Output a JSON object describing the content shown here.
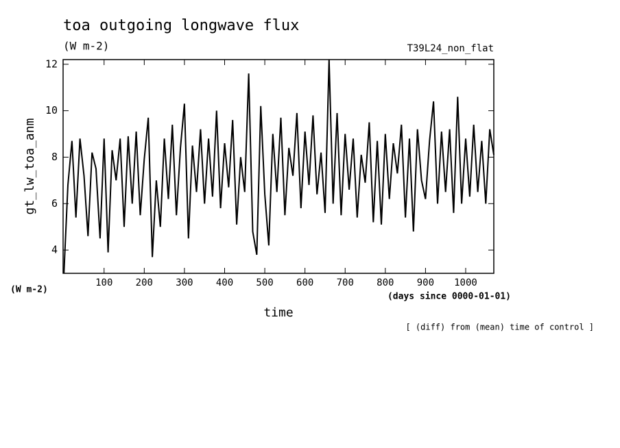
{
  "chart_data": {
    "type": "line",
    "title": "toa outgoing longwave flux",
    "subtitle": "(W m-2)",
    "tag": "T39L24_non_flat",
    "y_label": "gt_lw_toa_anm",
    "y_units": "(W m-2)",
    "x_label": "time",
    "x_units": "(days since 0000-01-01)",
    "note": "[ (diff) from (mean) time of control ]",
    "x": [
      0,
      10,
      20,
      30,
      40,
      50,
      60,
      70,
      80,
      90,
      100,
      110,
      120,
      130,
      140,
      150,
      160,
      170,
      180,
      190,
      200,
      210,
      220,
      230,
      240,
      250,
      260,
      270,
      280,
      290,
      300,
      310,
      320,
      330,
      340,
      350,
      360,
      370,
      380,
      390,
      400,
      410,
      420,
      430,
      440,
      450,
      460,
      470,
      480,
      490,
      500,
      510,
      520,
      530,
      540,
      550,
      560,
      570,
      580,
      590,
      600,
      610,
      620,
      630,
      640,
      650,
      660,
      670,
      680,
      690,
      700,
      710,
      720,
      730,
      740,
      750,
      760,
      770,
      780,
      790,
      800,
      810,
      820,
      830,
      840,
      850,
      860,
      870,
      880,
      890,
      900,
      910,
      920,
      930,
      940,
      950,
      960,
      970,
      980,
      990,
      1000,
      1010,
      1020,
      1030,
      1040,
      1050,
      1060,
      1070
    ],
    "series": [
      {
        "name": "gt_lw_toa_anm",
        "color": "#000000",
        "values": [
          3.0,
          6.8,
          8.7,
          5.4,
          8.8,
          7.2,
          4.6,
          8.2,
          7.5,
          4.5,
          8.8,
          3.9,
          8.3,
          7.0,
          8.8,
          5.0,
          8.9,
          6.0,
          9.1,
          5.5,
          7.9,
          9.7,
          3.7,
          7.0,
          5.0,
          8.8,
          6.2,
          9.4,
          5.5,
          8.4,
          10.3,
          4.5,
          8.5,
          6.5,
          9.2,
          6.0,
          8.8,
          6.3,
          10.0,
          5.8,
          8.6,
          6.7,
          9.6,
          5.1,
          8.0,
          6.5,
          11.6,
          4.8,
          3.8,
          10.2,
          6.4,
          4.2,
          9.0,
          6.5,
          9.7,
          5.5,
          8.4,
          7.2,
          9.9,
          5.8,
          9.1,
          6.8,
          9.8,
          6.4,
          8.2,
          5.6,
          12.2,
          6.0,
          9.9,
          5.5,
          9.0,
          6.6,
          8.8,
          5.4,
          8.1,
          6.9,
          9.5,
          5.2,
          8.7,
          5.1,
          9.0,
          6.2,
          8.6,
          7.3,
          9.4,
          5.4,
          8.8,
          4.8,
          9.2,
          7.0,
          6.2,
          8.7,
          10.4,
          6.0,
          9.1,
          6.5,
          9.2,
          5.6,
          10.6,
          6.0,
          8.8,
          6.3,
          9.4,
          6.5,
          8.7,
          6.0,
          9.2,
          8.1
        ]
      }
    ],
    "xlim": [
      -2,
      1070
    ],
    "ylim": [
      3,
      12.2
    ],
    "xticks": [
      100,
      200,
      300,
      400,
      500,
      600,
      700,
      800,
      900,
      1000
    ],
    "yticks": [
      4,
      6,
      8,
      10,
      12
    ]
  }
}
